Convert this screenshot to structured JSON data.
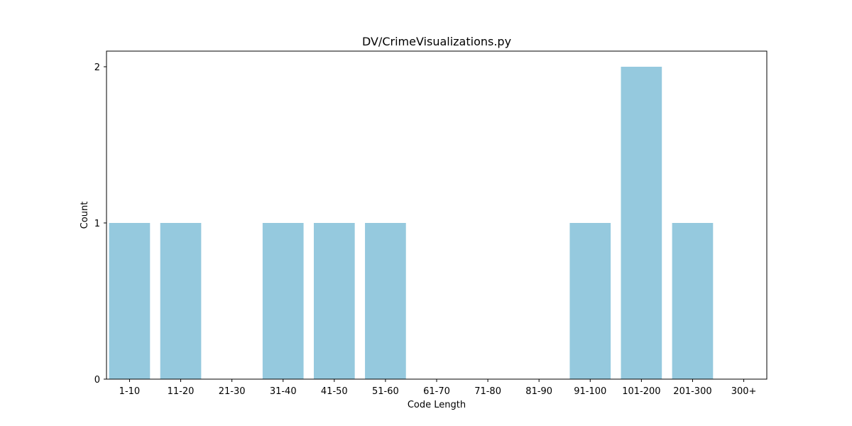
{
  "chart_data": {
    "type": "bar",
    "title": "DV/CrimeVisualizations.py",
    "xlabel": "Code Length",
    "ylabel": "Count",
    "categories": [
      "1-10",
      "11-20",
      "21-30",
      "31-40",
      "41-50",
      "51-60",
      "61-70",
      "71-80",
      "81-90",
      "91-100",
      "101-200",
      "201-300",
      "300+"
    ],
    "values": [
      1,
      1,
      0,
      1,
      1,
      1,
      0,
      0,
      0,
      1,
      2,
      1,
      0
    ],
    "ylim": [
      0,
      2.1
    ],
    "yticks": [
      0,
      1,
      2
    ],
    "bar_color": "#95c9de",
    "grid": false,
    "legend": "none"
  }
}
